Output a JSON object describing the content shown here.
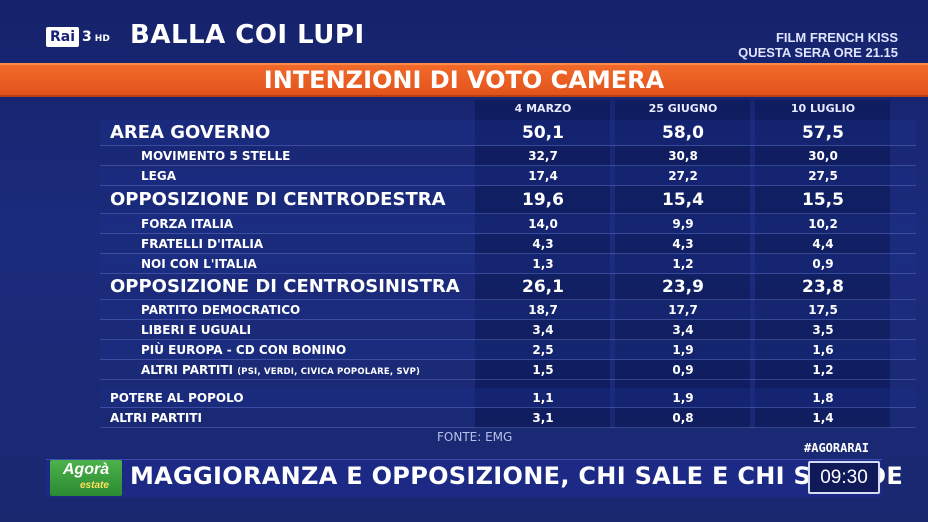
{
  "channel": {
    "logo": "Rai",
    "number": "3",
    "hd": "HD"
  },
  "program_title": "BALLA COI LUPI",
  "promo": {
    "line1": "FILM FRENCH KISS",
    "line2": "QUESTA SERA ORE 21.15"
  },
  "banner_title": "INTENZIONI DI VOTO CAMERA",
  "columns": [
    "4 MARZO",
    "25 GIUGNO",
    "10 LUGLIO"
  ],
  "rows": [
    {
      "label": "AREA GOVERNO",
      "values": [
        "50,1",
        "58,0",
        "57,5"
      ]
    },
    {
      "label": "MOVIMENTO 5 STELLE",
      "values": [
        "32,7",
        "30,8",
        "30,0"
      ]
    },
    {
      "label": "LEGA",
      "values": [
        "17,4",
        "27,2",
        "27,5"
      ]
    },
    {
      "label": "OPPOSIZIONE DI CENTRODESTRA",
      "values": [
        "19,6",
        "15,4",
        "15,5"
      ]
    },
    {
      "label": "FORZA ITALIA",
      "values": [
        "14,0",
        "9,9",
        "10,2"
      ]
    },
    {
      "label": "FRATELLI D'ITALIA",
      "values": [
        "4,3",
        "4,3",
        "4,4"
      ]
    },
    {
      "label": "NOI CON L'ITALIA",
      "values": [
        "1,3",
        "1,2",
        "0,9"
      ]
    },
    {
      "label": "OPPOSIZIONE DI CENTROSINISTRA",
      "values": [
        "26,1",
        "23,9",
        "23,8"
      ]
    },
    {
      "label": "PARTITO DEMOCRATICO",
      "values": [
        "18,7",
        "17,7",
        "17,5"
      ]
    },
    {
      "label": "LIBERI E UGUALI",
      "values": [
        "3,4",
        "3,4",
        "3,5"
      ]
    },
    {
      "label": "PIÙ EUROPA - CD CON BONINO",
      "values": [
        "2,5",
        "1,9",
        "1,6"
      ]
    },
    {
      "label": "ALTRI PARTITI",
      "label_detail": "(PSI, VERDI, CIVICA POPOLARE, SVP)",
      "values": [
        "1,5",
        "0,9",
        "1,2"
      ]
    },
    {
      "label": "POTERE AL POPOLO",
      "values": [
        "1,1",
        "1,9",
        "1,8"
      ]
    },
    {
      "label": "ALTRI PARTITI",
      "values": [
        "3,1",
        "0,8",
        "1,4"
      ]
    }
  ],
  "source": "FONTE: EMG",
  "hashtag": "#AGORARAI",
  "show": {
    "name": "Agorà",
    "subtitle": "estate"
  },
  "ticker": "MAGGIORANZA E OPPOSIZIONE, CHI SALE E CHI SCENDE",
  "clock": "09:30",
  "colors": {
    "background": "#1b2b7c",
    "banner": "#e2531c",
    "show_logo": "#2a8a32"
  }
}
